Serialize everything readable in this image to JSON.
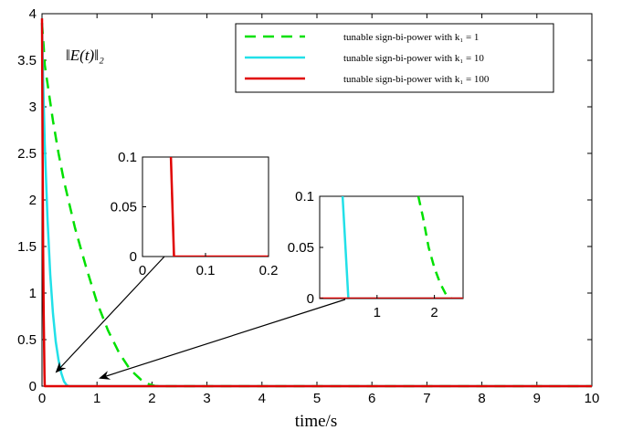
{
  "chart_data": {
    "type": "line",
    "xlabel": "time/s",
    "ylabel": "",
    "annotation": "‖E(t)‖₂",
    "xlim": [
      0,
      10
    ],
    "ylim": [
      0,
      4
    ],
    "xticks": [
      0,
      1,
      2,
      3,
      4,
      5,
      6,
      7,
      8,
      9,
      10
    ],
    "yticks": [
      0,
      0.5,
      1,
      1.5,
      2,
      2.5,
      3,
      3.5,
      4
    ],
    "ytick_labels": [
      "0",
      "0.5",
      "1",
      "1.5",
      "2",
      "2.5",
      "3",
      "3.5",
      "4"
    ],
    "grid": false,
    "legend_position": "top-right",
    "series": [
      {
        "name": "tunable sign-bi-power with k₁ = 1",
        "color": "#00e000",
        "style": "dashed",
        "x": [
          0.0,
          0.03,
          0.05,
          0.1,
          0.2,
          0.3,
          0.4,
          0.5,
          0.6,
          0.8,
          1.0,
          1.2,
          1.4,
          1.6,
          1.8,
          1.95,
          2.05,
          2.1,
          2.15,
          10
        ],
        "y": [
          3.9,
          3.65,
          3.45,
          3.25,
          2.85,
          2.5,
          2.2,
          1.95,
          1.7,
          1.28,
          0.9,
          0.6,
          0.36,
          0.18,
          0.07,
          0.02,
          0.004,
          0.001,
          0,
          0
        ]
      },
      {
        "name": "tunable sign-bi-power with k₁ = 10",
        "color": "#22e0e8",
        "style": "solid",
        "x": [
          0.0,
          0.02,
          0.05,
          0.1,
          0.15,
          0.2,
          0.25,
          0.3,
          0.35,
          0.4,
          0.45,
          0.5,
          10
        ],
        "y": [
          3.9,
          3.3,
          2.6,
          1.8,
          1.2,
          0.78,
          0.48,
          0.28,
          0.14,
          0.05,
          0.01,
          0,
          0
        ]
      },
      {
        "name": "tunable sign-bi-power with k₁ = 100",
        "color": "#e00000",
        "style": "solid",
        "x": [
          0.0,
          0.01,
          0.02,
          0.03,
          0.045,
          0.05,
          10
        ],
        "y": [
          3.95,
          2.6,
          1.5,
          0.8,
          0.12,
          0,
          0
        ]
      }
    ],
    "insets": [
      {
        "xlim": [
          0,
          0.2
        ],
        "ylim": [
          0,
          0.1
        ],
        "xticks": [
          0,
          0.1,
          0.2
        ],
        "yticks": [
          0,
          0.05,
          0.1
        ],
        "series": [
          {
            "color": "#e00000",
            "style": "solid",
            "x": [
              0.045,
              0.05,
              0.2
            ],
            "y": [
              0.1,
              0,
              0
            ]
          }
        ]
      },
      {
        "xlim": [
          0,
          2.5
        ],
        "ylim": [
          0,
          0.1
        ],
        "xticks": [
          1,
          2
        ],
        "yticks": [
          0,
          0.05,
          0.1
        ],
        "series": [
          {
            "color": "#22e0e8",
            "style": "solid",
            "x": [
              0.4,
              0.5,
              2.5
            ],
            "y": [
              0.1,
              0,
              0
            ]
          },
          {
            "color": "#00e000",
            "style": "dashed",
            "x": [
              1.72,
              1.8,
              1.9,
              2.0,
              2.1,
              2.2,
              2.3
            ],
            "y": [
              0.1,
              0.08,
              0.05,
              0.03,
              0.015,
              0.004,
              0
            ]
          },
          {
            "color": "#e00000",
            "style": "solid",
            "x": [
              0.0,
              2.5
            ],
            "y": [
              0,
              0
            ]
          }
        ]
      }
    ]
  }
}
